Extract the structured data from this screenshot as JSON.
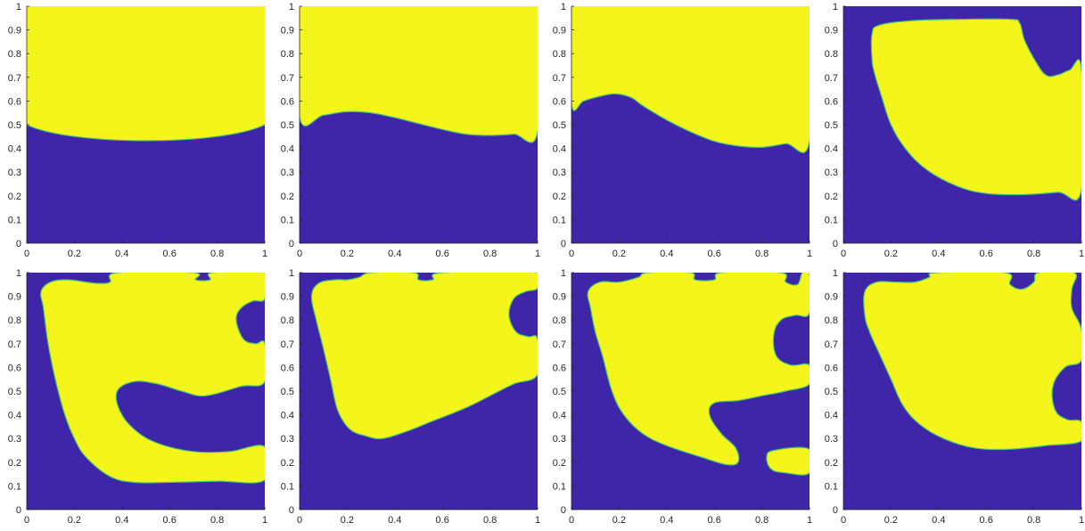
{
  "chart_data": [
    {
      "type": "heatmap",
      "title": "",
      "xlabel": "",
      "ylabel": "",
      "xlim": [
        0,
        1
      ],
      "ylim": [
        0,
        1
      ],
      "xticks": [
        0,
        0.2,
        0.4,
        0.6,
        0.8,
        1
      ],
      "xtick_labels": [
        "0",
        "0.2",
        "0.4",
        "0.6",
        "0.8",
        "1"
      ],
      "yticks": [
        0,
        0.1,
        0.2,
        0.3,
        0.4,
        0.5,
        0.6,
        0.7,
        0.8,
        0.9,
        1
      ],
      "ytick_labels": [
        "0",
        "0.1",
        "0.2",
        "0.3",
        "0.4",
        "0.5",
        "0.6",
        "0.7",
        "0.8",
        "0.9",
        "1"
      ],
      "background_phase_color": "#3f26a8",
      "region_color": "#f4f51a",
      "regions": [
        [
          [
            0,
            0.5
          ],
          [
            1,
            0.5
          ],
          [
            1,
            1
          ],
          [
            0,
            1
          ]
        ]
      ]
    },
    {
      "type": "heatmap",
      "title": "",
      "xlabel": "",
      "ylabel": "",
      "xlim": [
        0,
        1
      ],
      "ylim": [
        0,
        1
      ],
      "xticks": [
        0,
        0.2,
        0.4,
        0.6,
        0.8,
        1
      ],
      "xtick_labels": [
        "0",
        "0.2",
        "0.4",
        "0.6",
        "0.8",
        "1"
      ],
      "yticks": [
        0,
        0.1,
        0.2,
        0.3,
        0.4,
        0.5,
        0.6,
        0.7,
        0.8,
        0.9,
        1
      ],
      "ytick_labels": [
        "0",
        "0.1",
        "0.2",
        "0.3",
        "0.4",
        "0.5",
        "0.6",
        "0.7",
        "0.8",
        "0.9",
        "1"
      ],
      "background_phase_color": "#3f26a8",
      "region_color": "#f4f51a",
      "regions": [
        [
          [
            0,
            0.53
          ],
          [
            0.1,
            0.54
          ],
          [
            0.2,
            0.555
          ],
          [
            0.3,
            0.55
          ],
          [
            0.4,
            0.53
          ],
          [
            0.5,
            0.505
          ],
          [
            0.6,
            0.48
          ],
          [
            0.7,
            0.46
          ],
          [
            0.8,
            0.455
          ],
          [
            0.9,
            0.46
          ],
          [
            1,
            0.47
          ],
          [
            1,
            1
          ],
          [
            0,
            1
          ]
        ]
      ]
    },
    {
      "type": "heatmap",
      "title": "",
      "xlabel": "",
      "ylabel": "",
      "xlim": [
        0,
        1
      ],
      "ylim": [
        0,
        1
      ],
      "xticks": [
        0,
        0.2,
        0.4,
        0.6,
        0.8,
        1
      ],
      "xtick_labels": [
        "0",
        "0.2",
        "0.4",
        "0.6",
        "0.8",
        "1"
      ],
      "yticks": [
        0,
        0.1,
        0.2,
        0.3,
        0.4,
        0.5,
        0.6,
        0.7,
        0.8,
        0.9,
        1
      ],
      "ytick_labels": [
        "0",
        "0.1",
        "0.2",
        "0.3",
        "0.4",
        "0.5",
        "0.6",
        "0.7",
        "0.8",
        "0.9",
        "1"
      ],
      "background_phase_color": "#3f26a8",
      "region_color": "#f4f51a",
      "regions": [
        [
          [
            0,
            0.59
          ],
          [
            0.05,
            0.6
          ],
          [
            0.1,
            0.615
          ],
          [
            0.18,
            0.63
          ],
          [
            0.25,
            0.615
          ],
          [
            0.3,
            0.58
          ],
          [
            0.4,
            0.52
          ],
          [
            0.5,
            0.47
          ],
          [
            0.6,
            0.43
          ],
          [
            0.7,
            0.41
          ],
          [
            0.8,
            0.405
          ],
          [
            0.9,
            0.42
          ],
          [
            1,
            0.43
          ],
          [
            1,
            1
          ],
          [
            0,
            1
          ]
        ]
      ]
    },
    {
      "type": "heatmap",
      "title": "",
      "xlabel": "",
      "ylabel": "",
      "xlim": [
        0,
        1
      ],
      "ylim": [
        0,
        1
      ],
      "xticks": [
        0,
        0.2,
        0.4,
        0.6,
        0.8,
        1
      ],
      "xtick_labels": [
        "0",
        "0.2",
        "0.4",
        "0.6",
        "0.8",
        "1"
      ],
      "yticks": [
        0,
        0.1,
        0.2,
        0.3,
        0.4,
        0.5,
        0.6,
        0.7,
        0.8,
        0.9,
        1
      ],
      "ytick_labels": [
        "0",
        "0.1",
        "0.2",
        "0.3",
        "0.4",
        "0.5",
        "0.6",
        "0.7",
        "0.8",
        "0.9",
        "1"
      ],
      "background_phase_color": "#3f26a8",
      "region_color": "#f4f51a",
      "regions": [
        [
          [
            0.12,
            0.78
          ],
          [
            0.12,
            0.88
          ],
          [
            0.15,
            0.92
          ],
          [
            0.3,
            0.94
          ],
          [
            0.5,
            0.945
          ],
          [
            0.7,
            0.945
          ],
          [
            0.74,
            0.93
          ],
          [
            0.76,
            0.86
          ],
          [
            0.8,
            0.78
          ],
          [
            0.85,
            0.71
          ],
          [
            0.9,
            0.71
          ],
          [
            0.95,
            0.73
          ],
          [
            1,
            0.735
          ],
          [
            1,
            0.225
          ],
          [
            0.9,
            0.215
          ],
          [
            0.75,
            0.205
          ],
          [
            0.6,
            0.21
          ],
          [
            0.48,
            0.24
          ],
          [
            0.35,
            0.31
          ],
          [
            0.26,
            0.4
          ],
          [
            0.2,
            0.5
          ],
          [
            0.16,
            0.62
          ],
          [
            0.13,
            0.72
          ]
        ]
      ]
    },
    {
      "type": "heatmap",
      "title": "",
      "xlabel": "",
      "ylabel": "",
      "xlim": [
        0,
        1
      ],
      "ylim": [
        0,
        1
      ],
      "xticks": [
        0,
        0.2,
        0.4,
        0.6,
        0.8,
        1
      ],
      "xtick_labels": [
        "0",
        "0.2",
        "0.4",
        "0.6",
        "0.8",
        "1"
      ],
      "yticks": [
        0,
        0.1,
        0.2,
        0.3,
        0.4,
        0.5,
        0.6,
        0.7,
        0.8,
        0.9,
        1
      ],
      "ytick_labels": [
        "0",
        "0.1",
        "0.2",
        "0.3",
        "0.4",
        "0.5",
        "0.6",
        "0.7",
        "0.8",
        "0.9",
        "1"
      ],
      "background_phase_color": "#3f26a8",
      "region_color": "#f4f51a",
      "regions": [
        [
          [
            0.07,
            0.85
          ],
          [
            0.06,
            0.92
          ],
          [
            0.1,
            0.96
          ],
          [
            0.17,
            0.97
          ],
          [
            0.25,
            0.96
          ],
          [
            0.3,
            0.955
          ],
          [
            0.35,
            0.96
          ],
          [
            0.38,
            1
          ],
          [
            0.7,
            1
          ],
          [
            0.71,
            0.97
          ],
          [
            0.77,
            0.97
          ],
          [
            0.78,
            1
          ],
          [
            1,
            1
          ],
          [
            1,
            0.89
          ],
          [
            0.95,
            0.88
          ],
          [
            0.9,
            0.85
          ],
          [
            0.88,
            0.8
          ],
          [
            0.91,
            0.72
          ],
          [
            0.96,
            0.7
          ],
          [
            1,
            0.7
          ],
          [
            1,
            0.54
          ],
          [
            0.9,
            0.52
          ],
          [
            0.75,
            0.48
          ],
          [
            0.65,
            0.5
          ],
          [
            0.55,
            0.53
          ],
          [
            0.45,
            0.54
          ],
          [
            0.38,
            0.5
          ],
          [
            0.39,
            0.42
          ],
          [
            0.45,
            0.34
          ],
          [
            0.55,
            0.28
          ],
          [
            0.7,
            0.245
          ],
          [
            0.85,
            0.245
          ],
          [
            1,
            0.265
          ],
          [
            1,
            0.125
          ],
          [
            0.8,
            0.12
          ],
          [
            0.6,
            0.115
          ],
          [
            0.45,
            0.115
          ],
          [
            0.35,
            0.14
          ],
          [
            0.25,
            0.22
          ],
          [
            0.2,
            0.3
          ],
          [
            0.16,
            0.4
          ],
          [
            0.12,
            0.55
          ],
          [
            0.09,
            0.7
          ]
        ]
      ]
    },
    {
      "type": "heatmap",
      "title": "",
      "xlabel": "",
      "ylabel": "",
      "xlim": [
        0,
        1
      ],
      "ylim": [
        0,
        1
      ],
      "xticks": [
        0,
        0.2,
        0.4,
        0.6,
        0.8,
        1
      ],
      "xtick_labels": [
        "0",
        "0.2",
        "0.4",
        "0.6",
        "0.8",
        "1"
      ],
      "yticks": [
        0,
        0.1,
        0.2,
        0.3,
        0.4,
        0.5,
        0.6,
        0.7,
        0.8,
        0.9,
        1
      ],
      "ytick_labels": [
        "0",
        "0.1",
        "0.2",
        "0.3",
        "0.4",
        "0.5",
        "0.6",
        "0.7",
        "0.8",
        "0.9",
        "1"
      ],
      "background_phase_color": "#3f26a8",
      "region_color": "#f4f51a",
      "regions": [
        [
          [
            0.07,
            0.8
          ],
          [
            0.05,
            0.9
          ],
          [
            0.08,
            0.955
          ],
          [
            0.15,
            0.97
          ],
          [
            0.2,
            0.97
          ],
          [
            0.25,
            0.98
          ],
          [
            0.3,
            1
          ],
          [
            0.48,
            1
          ],
          [
            0.5,
            0.97
          ],
          [
            0.56,
            0.97
          ],
          [
            0.6,
            1
          ],
          [
            1,
            1
          ],
          [
            1,
            0.935
          ],
          [
            0.95,
            0.92
          ],
          [
            0.9,
            0.89
          ],
          [
            0.88,
            0.82
          ],
          [
            0.91,
            0.75
          ],
          [
            0.96,
            0.73
          ],
          [
            1,
            0.72
          ],
          [
            1,
            0.57
          ],
          [
            0.9,
            0.53
          ],
          [
            0.8,
            0.48
          ],
          [
            0.7,
            0.43
          ],
          [
            0.55,
            0.37
          ],
          [
            0.45,
            0.33
          ],
          [
            0.35,
            0.3
          ],
          [
            0.28,
            0.31
          ],
          [
            0.21,
            0.34
          ],
          [
            0.16,
            0.42
          ],
          [
            0.13,
            0.55
          ],
          [
            0.1,
            0.68
          ]
        ]
      ]
    },
    {
      "type": "heatmap",
      "title": "",
      "xlabel": "",
      "ylabel": "",
      "xlim": [
        0,
        1
      ],
      "ylim": [
        0,
        1
      ],
      "xticks": [
        0,
        0.2,
        0.4,
        0.6,
        0.8,
        1
      ],
      "xtick_labels": [
        "0",
        "0.2",
        "0.4",
        "0.6",
        "0.8",
        "1"
      ],
      "yticks": [
        0,
        0.1,
        0.2,
        0.3,
        0.4,
        0.5,
        0.6,
        0.7,
        0.8,
        0.9,
        1
      ],
      "ytick_labels": [
        "0",
        "0.1",
        "0.2",
        "0.3",
        "0.4",
        "0.5",
        "0.6",
        "0.7",
        "0.8",
        "0.9",
        "1"
      ],
      "background_phase_color": "#3f26a8",
      "region_color": "#f4f51a",
      "regions": [
        [
          [
            0.08,
            0.85
          ],
          [
            0.07,
            0.92
          ],
          [
            0.12,
            0.96
          ],
          [
            0.2,
            0.96
          ],
          [
            0.28,
            0.98
          ],
          [
            0.32,
            1
          ],
          [
            0.5,
            1
          ],
          [
            0.52,
            0.97
          ],
          [
            0.6,
            0.97
          ],
          [
            0.63,
            1
          ],
          [
            0.88,
            1
          ],
          [
            0.9,
            0.96
          ],
          [
            0.95,
            0.95
          ],
          [
            0.97,
            1
          ],
          [
            1,
            1
          ],
          [
            1,
            0.83
          ],
          [
            0.94,
            0.82
          ],
          [
            0.88,
            0.8
          ],
          [
            0.85,
            0.74
          ],
          [
            0.86,
            0.65
          ],
          [
            0.92,
            0.61
          ],
          [
            1,
            0.61
          ],
          [
            1,
            0.53
          ],
          [
            0.9,
            0.5
          ],
          [
            0.8,
            0.48
          ],
          [
            0.7,
            0.46
          ],
          [
            0.6,
            0.45
          ],
          [
            0.58,
            0.4
          ],
          [
            0.63,
            0.32
          ],
          [
            0.69,
            0.26
          ],
          [
            0.7,
            0.2
          ],
          [
            0.65,
            0.19
          ],
          [
            0.55,
            0.22
          ],
          [
            0.4,
            0.27
          ],
          [
            0.3,
            0.32
          ],
          [
            0.22,
            0.4
          ],
          [
            0.17,
            0.5
          ],
          [
            0.13,
            0.65
          ],
          [
            0.1,
            0.75
          ]
        ],
        [
          [
            0.82,
            0.22
          ],
          [
            0.85,
            0.25
          ],
          [
            1,
            0.255
          ],
          [
            1,
            0.155
          ],
          [
            0.9,
            0.155
          ],
          [
            0.84,
            0.17
          ]
        ]
      ]
    },
    {
      "type": "heatmap",
      "title": "",
      "xlabel": "",
      "ylabel": "",
      "xlim": [
        0,
        1
      ],
      "ylim": [
        0,
        1
      ],
      "xticks": [
        0,
        0.2,
        0.4,
        0.6,
        0.8,
        1
      ],
      "xtick_labels": [
        "0",
        "0.2",
        "0.4",
        "0.6",
        "0.8",
        "1"
      ],
      "yticks": [
        0,
        0.1,
        0.2,
        0.3,
        0.4,
        0.5,
        0.6,
        0.7,
        0.8,
        0.9,
        1
      ],
      "ytick_labels": [
        "0",
        "0.1",
        "0.2",
        "0.3",
        "0.4",
        "0.5",
        "0.6",
        "0.7",
        "0.8",
        "0.9",
        "1"
      ],
      "background_phase_color": "#3f26a8",
      "region_color": "#f4f51a",
      "regions": [
        [
          [
            0.09,
            0.82
          ],
          [
            0.09,
            0.92
          ],
          [
            0.14,
            0.96
          ],
          [
            0.22,
            0.96
          ],
          [
            0.3,
            0.96
          ],
          [
            0.36,
            0.98
          ],
          [
            0.39,
            1
          ],
          [
            0.68,
            1
          ],
          [
            0.7,
            0.95
          ],
          [
            0.75,
            0.93
          ],
          [
            0.8,
            0.96
          ],
          [
            0.82,
            1
          ],
          [
            0.97,
            1
          ],
          [
            0.96,
            0.93
          ],
          [
            0.96,
            0.85
          ],
          [
            1,
            0.76
          ],
          [
            1,
            0.63
          ],
          [
            0.93,
            0.6
          ],
          [
            0.88,
            0.52
          ],
          [
            0.89,
            0.42
          ],
          [
            0.94,
            0.38
          ],
          [
            1,
            0.37
          ],
          [
            1,
            0.29
          ],
          [
            0.85,
            0.27
          ],
          [
            0.7,
            0.255
          ],
          [
            0.55,
            0.26
          ],
          [
            0.42,
            0.3
          ],
          [
            0.32,
            0.36
          ],
          [
            0.25,
            0.44
          ],
          [
            0.2,
            0.55
          ],
          [
            0.15,
            0.66
          ],
          [
            0.11,
            0.75
          ]
        ]
      ]
    }
  ]
}
